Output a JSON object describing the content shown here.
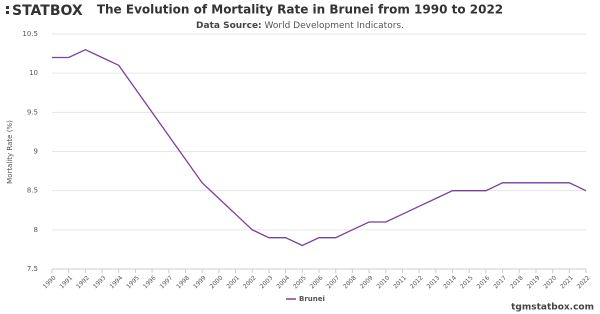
{
  "logo": "STATBOX",
  "footer": "tgmstatbox.com",
  "chart_data": {
    "type": "line",
    "title": "The Evolution of Mortality Rate in Brunei from 1990 to 2022",
    "source_label": "Data Source:",
    "source": "World Development Indicators.",
    "y_label": "Mortality Rate (%)",
    "categories": [
      "1990",
      "1991",
      "1992",
      "1993",
      "1994",
      "1995",
      "1996",
      "1997",
      "1998",
      "1999",
      "2000",
      "2001",
      "2002",
      "2003",
      "2004",
      "2005",
      "2006",
      "2007",
      "2008",
      "2009",
      "2010",
      "2011",
      "2012",
      "2013",
      "2014",
      "2015",
      "2016",
      "2017",
      "2018",
      "2019",
      "2020",
      "2021",
      "2022"
    ],
    "series": [
      {
        "name": "Brunei",
        "color": "#7b3f9e",
        "values": [
          10.2,
          10.2,
          10.3,
          10.2,
          10.1,
          9.8,
          9.5,
          9.2,
          8.9,
          8.6,
          8.4,
          8.2,
          8.0,
          7.9,
          7.9,
          7.8,
          7.9,
          7.9,
          8.0,
          8.1,
          8.1,
          8.2,
          8.3,
          8.4,
          8.5,
          8.5,
          8.5,
          8.6,
          8.6,
          8.6,
          8.6,
          8.6,
          8.5
        ]
      }
    ],
    "ylim": [
      7.5,
      10.5
    ],
    "yticks": [
      7.5,
      8,
      8.5,
      9,
      9.5,
      10,
      10.5
    ],
    "grid": true,
    "legend": "bottom"
  }
}
